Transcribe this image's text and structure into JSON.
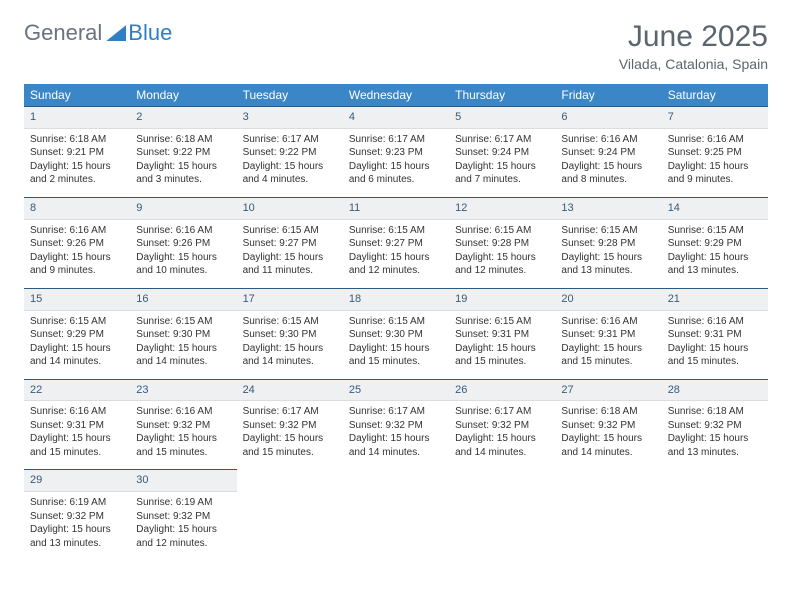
{
  "brand": {
    "part1": "General",
    "part2": "Blue"
  },
  "title": "June 2025",
  "location": "Vilada, Catalonia, Spain",
  "colors": {
    "header_bg": "#3b86c6",
    "header_fg": "#ffffff",
    "daynum_bg": "#eef0f2",
    "daynum_fg": "#3a5a78",
    "border_top": "#2a5a84",
    "text": "#333333",
    "title": "#5a6570"
  },
  "weekdays": [
    "Sunday",
    "Monday",
    "Tuesday",
    "Wednesday",
    "Thursday",
    "Friday",
    "Saturday"
  ],
  "weeks": [
    [
      {
        "n": "1",
        "sr": "6:18 AM",
        "ss": "9:21 PM",
        "dl": "15 hours and 2 minutes."
      },
      {
        "n": "2",
        "sr": "6:18 AM",
        "ss": "9:22 PM",
        "dl": "15 hours and 3 minutes."
      },
      {
        "n": "3",
        "sr": "6:17 AM",
        "ss": "9:22 PM",
        "dl": "15 hours and 4 minutes."
      },
      {
        "n": "4",
        "sr": "6:17 AM",
        "ss": "9:23 PM",
        "dl": "15 hours and 6 minutes."
      },
      {
        "n": "5",
        "sr": "6:17 AM",
        "ss": "9:24 PM",
        "dl": "15 hours and 7 minutes."
      },
      {
        "n": "6",
        "sr": "6:16 AM",
        "ss": "9:24 PM",
        "dl": "15 hours and 8 minutes."
      },
      {
        "n": "7",
        "sr": "6:16 AM",
        "ss": "9:25 PM",
        "dl": "15 hours and 9 minutes."
      }
    ],
    [
      {
        "n": "8",
        "sr": "6:16 AM",
        "ss": "9:26 PM",
        "dl": "15 hours and 9 minutes."
      },
      {
        "n": "9",
        "sr": "6:16 AM",
        "ss": "9:26 PM",
        "dl": "15 hours and 10 minutes."
      },
      {
        "n": "10",
        "sr": "6:15 AM",
        "ss": "9:27 PM",
        "dl": "15 hours and 11 minutes."
      },
      {
        "n": "11",
        "sr": "6:15 AM",
        "ss": "9:27 PM",
        "dl": "15 hours and 12 minutes."
      },
      {
        "n": "12",
        "sr": "6:15 AM",
        "ss": "9:28 PM",
        "dl": "15 hours and 12 minutes."
      },
      {
        "n": "13",
        "sr": "6:15 AM",
        "ss": "9:28 PM",
        "dl": "15 hours and 13 minutes."
      },
      {
        "n": "14",
        "sr": "6:15 AM",
        "ss": "9:29 PM",
        "dl": "15 hours and 13 minutes."
      }
    ],
    [
      {
        "n": "15",
        "sr": "6:15 AM",
        "ss": "9:29 PM",
        "dl": "15 hours and 14 minutes."
      },
      {
        "n": "16",
        "sr": "6:15 AM",
        "ss": "9:30 PM",
        "dl": "15 hours and 14 minutes."
      },
      {
        "n": "17",
        "sr": "6:15 AM",
        "ss": "9:30 PM",
        "dl": "15 hours and 14 minutes."
      },
      {
        "n": "18",
        "sr": "6:15 AM",
        "ss": "9:30 PM",
        "dl": "15 hours and 15 minutes."
      },
      {
        "n": "19",
        "sr": "6:15 AM",
        "ss": "9:31 PM",
        "dl": "15 hours and 15 minutes."
      },
      {
        "n": "20",
        "sr": "6:16 AM",
        "ss": "9:31 PM",
        "dl": "15 hours and 15 minutes."
      },
      {
        "n": "21",
        "sr": "6:16 AM",
        "ss": "9:31 PM",
        "dl": "15 hours and 15 minutes."
      }
    ],
    [
      {
        "n": "22",
        "sr": "6:16 AM",
        "ss": "9:31 PM",
        "dl": "15 hours and 15 minutes."
      },
      {
        "n": "23",
        "sr": "6:16 AM",
        "ss": "9:32 PM",
        "dl": "15 hours and 15 minutes."
      },
      {
        "n": "24",
        "sr": "6:17 AM",
        "ss": "9:32 PM",
        "dl": "15 hours and 15 minutes."
      },
      {
        "n": "25",
        "sr": "6:17 AM",
        "ss": "9:32 PM",
        "dl": "15 hours and 14 minutes."
      },
      {
        "n": "26",
        "sr": "6:17 AM",
        "ss": "9:32 PM",
        "dl": "15 hours and 14 minutes."
      },
      {
        "n": "27",
        "sr": "6:18 AM",
        "ss": "9:32 PM",
        "dl": "15 hours and 14 minutes."
      },
      {
        "n": "28",
        "sr": "6:18 AM",
        "ss": "9:32 PM",
        "dl": "15 hours and 13 minutes."
      }
    ],
    [
      {
        "n": "29",
        "sr": "6:19 AM",
        "ss": "9:32 PM",
        "dl": "15 hours and 13 minutes."
      },
      {
        "n": "30",
        "sr": "6:19 AM",
        "ss": "9:32 PM",
        "dl": "15 hours and 12 minutes."
      },
      null,
      null,
      null,
      null,
      null
    ]
  ],
  "labels": {
    "sunrise": "Sunrise: ",
    "sunset": "Sunset: ",
    "daylight": "Daylight: "
  }
}
